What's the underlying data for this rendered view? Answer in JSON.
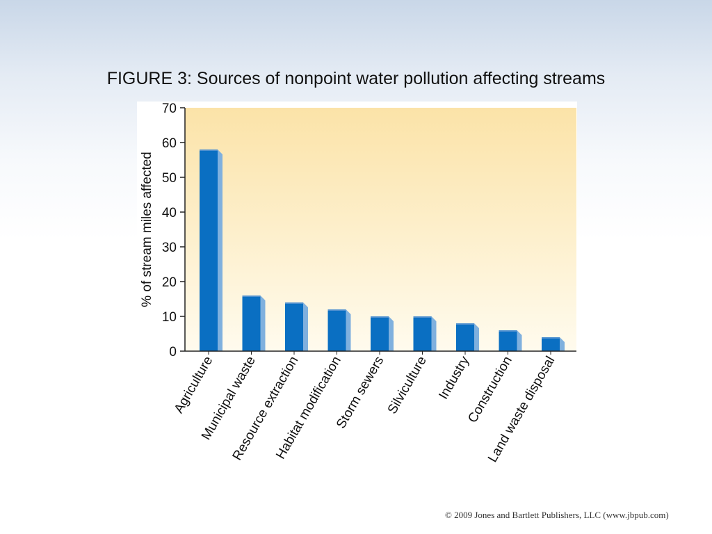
{
  "slide": {
    "title": "FIGURE 3: Sources of nonpoint water pollution affecting streams",
    "copyright": "© 2009 Jones and Bartlett Publishers, LLC (www.jbpub.com)"
  },
  "colors": {
    "bar_front": "#0a6fc2",
    "bar_side": "#7fb0de",
    "bar_top": "#4e8fcf",
    "plot_bg_top": "#fbe3a8",
    "plot_bg_bottom": "#fffbee"
  },
  "chart_data": {
    "type": "bar",
    "title": "",
    "xlabel": "",
    "ylabel": "% of stream miles affected",
    "ylim": [
      0,
      70
    ],
    "yticks": [
      0,
      10,
      20,
      30,
      40,
      50,
      60,
      70
    ],
    "categories": [
      "Agriculture",
      "Municipal waste",
      "Resource extraction",
      "Habitat modification",
      "Storm sewers",
      "Silviculture",
      "Industry",
      "Construction",
      "Land waste disposal"
    ],
    "values": [
      58,
      16,
      14,
      12,
      10,
      10,
      8,
      6,
      4
    ],
    "grid": false,
    "legend": "none"
  }
}
